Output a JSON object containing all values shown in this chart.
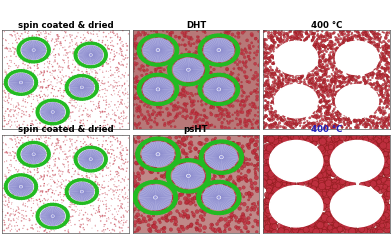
{
  "titles": [
    [
      [
        "spin coated & dried",
        "black"
      ],
      [
        "DHT",
        "black"
      ],
      [
        "400 °C",
        "black"
      ]
    ],
    [
      [
        "spin coated & dried",
        "black"
      ],
      [
        "psHT",
        "black"
      ],
      [
        "400 °C",
        "#2222bb"
      ]
    ]
  ],
  "micelle_spoke_color": "#8888cc",
  "micelle_inner_color": "#aaaadd",
  "micelle_outer_dot_color": "#22bb22",
  "spin_bg": "#ffffff",
  "dht_bg": "#b87878",
  "psht_bg": "#c08888",
  "calc_bg": "#ffffff",
  "dot_color": "#c03040",
  "dot_edge_color": "#8b1a1a"
}
